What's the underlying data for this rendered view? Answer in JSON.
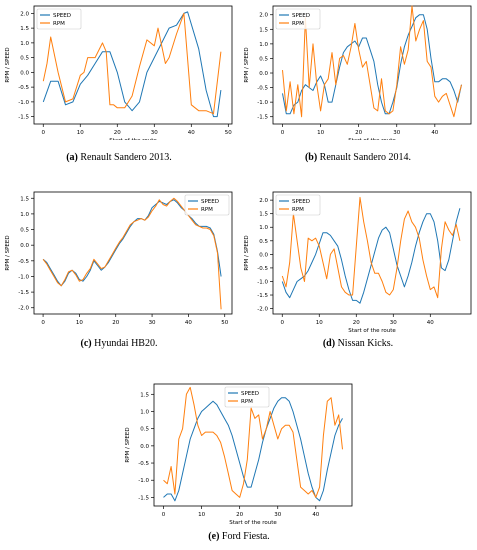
{
  "colors": {
    "speed": "#1f77b4",
    "rpm": "#ff7f0e"
  },
  "chart_data": [
    {
      "type": "line",
      "caption_label": "(a)",
      "caption_text": "Renault Sandero 2013.",
      "xlabel": "Start of the route",
      "ylabel": "RPM / SPEED",
      "xlim": [
        -2.5,
        51
      ],
      "ylim": [
        -1.75,
        2.25
      ],
      "xticks": [
        0,
        10,
        20,
        30,
        40,
        50
      ],
      "yticks": [
        -1.5,
        -1.0,
        -0.5,
        0.0,
        0.5,
        1.0,
        1.5,
        2.0
      ],
      "legend_position": "top-left",
      "series": [
        {
          "name": "SPEED",
          "x": [
            0,
            2,
            4,
            6,
            8,
            10,
            12,
            14,
            16,
            18,
            20,
            22,
            24,
            26,
            28,
            30,
            32,
            34,
            36,
            38,
            39,
            42,
            44,
            46,
            47,
            48
          ],
          "values": [
            -1.0,
            -0.3,
            -0.3,
            -1.1,
            -1.0,
            -0.4,
            -0.1,
            0.3,
            0.7,
            0.7,
            0.0,
            -1.0,
            -1.3,
            -1.0,
            0.0,
            0.5,
            1.0,
            1.5,
            1.6,
            2.0,
            2.05,
            0.8,
            -0.6,
            -1.5,
            -1.5,
            -0.6
          ]
        },
        {
          "name": "RPM",
          "x": [
            0,
            1,
            2,
            4,
            6,
            8,
            10,
            11,
            12,
            14,
            16,
            17,
            18,
            19,
            20,
            22,
            24,
            26,
            28,
            30,
            31,
            33,
            34,
            36,
            38,
            40,
            42,
            44,
            46,
            48
          ],
          "values": [
            -0.3,
            0.3,
            1.2,
            0.0,
            -1.0,
            -0.9,
            -0.1,
            0.0,
            0.5,
            0.5,
            1.0,
            0.7,
            -1.1,
            -1.1,
            -1.2,
            -1.2,
            -0.8,
            0.2,
            1.1,
            0.9,
            1.5,
            0.3,
            0.5,
            1.3,
            2.0,
            -1.1,
            -1.3,
            -1.3,
            -1.4,
            0.7
          ]
        }
      ]
    },
    {
      "type": "line",
      "caption_label": "(b)",
      "caption_text": "Renault Sandero 2014.",
      "xlabel": "Start of the route",
      "ylabel": "RPM / SPEED",
      "xlim": [
        -2.5,
        49.5
      ],
      "ylim": [
        -1.75,
        2.3
      ],
      "xticks": [
        0,
        10,
        20,
        30,
        40
      ],
      "yticks": [
        -1.5,
        -1.0,
        -0.5,
        0.0,
        0.5,
        1.0,
        1.5,
        2.0
      ],
      "legend_position": "top-left",
      "series": [
        {
          "name": "SPEED",
          "x": [
            0,
            1,
            2,
            3,
            4,
            5,
            6,
            7,
            8,
            9,
            10,
            11,
            12,
            13,
            14,
            15,
            16,
            17,
            18,
            19,
            20,
            21,
            22,
            23,
            24,
            25,
            26,
            27,
            28,
            29,
            30,
            31,
            32,
            33,
            34,
            35,
            36,
            37,
            38,
            39,
            40,
            41,
            42,
            43,
            44,
            45,
            46,
            47
          ],
          "values": [
            -0.7,
            -1.4,
            -1.4,
            -1.1,
            -1.0,
            -0.6,
            -0.4,
            -0.5,
            -0.6,
            -0.3,
            -0.1,
            -0.4,
            -1.0,
            -1.0,
            -0.4,
            0.2,
            0.7,
            0.9,
            1.0,
            1.1,
            0.9,
            1.2,
            1.2,
            0.8,
            0.4,
            -0.4,
            -1.0,
            -1.4,
            -1.4,
            -1.0,
            -0.5,
            0.3,
            0.9,
            1.3,
            1.6,
            1.9,
            2.0,
            2.0,
            1.5,
            0.5,
            -0.3,
            -0.3,
            -0.2,
            -0.2,
            -0.3,
            -0.6,
            -1.0,
            -0.4
          ]
        },
        {
          "name": "RPM",
          "x": [
            0,
            1,
            2,
            3,
            4,
            5,
            6,
            7,
            8,
            9,
            10,
            11,
            12,
            13,
            14,
            15,
            16,
            17,
            18,
            19,
            20,
            21,
            22,
            23,
            24,
            25,
            26,
            27,
            28,
            29,
            30,
            31,
            32,
            33,
            34,
            35,
            36,
            37,
            38,
            39,
            40,
            41,
            42,
            43,
            44,
            45,
            46,
            47
          ],
          "values": [
            0.1,
            -1.3,
            -0.3,
            -1.4,
            -0.4,
            -1.5,
            1.9,
            -0.5,
            1.0,
            -0.4,
            -1.3,
            -0.4,
            -0.2,
            0.7,
            -0.4,
            0.5,
            0.6,
            0.3,
            0.9,
            1.7,
            0.8,
            0.2,
            0.4,
            -0.4,
            -1.2,
            -1.3,
            -0.2,
            -1.3,
            -1.4,
            -1.3,
            -0.4,
            0.9,
            0.3,
            0.8,
            2.3,
            1.1,
            1.5,
            1.8,
            0.4,
            0.2,
            -0.8,
            -1.0,
            -0.8,
            -0.7,
            -1.1,
            -1.5,
            -0.9,
            -0.4
          ]
        }
      ]
    },
    {
      "type": "line",
      "caption_label": "(c)",
      "caption_text": "Hyundai HB20.",
      "xlabel": "",
      "ylabel": "RPM / SPEED",
      "xlim": [
        -2.5,
        52
      ],
      "ylim": [
        -2.2,
        1.7
      ],
      "xticks": [
        0,
        10,
        20,
        30,
        40,
        50
      ],
      "yticks": [
        -2.0,
        -1.5,
        -1.0,
        -0.5,
        0.0,
        0.5,
        1.0,
        1.5
      ],
      "legend_position": "top-right",
      "series": [
        {
          "name": "SPEED",
          "x": [
            0,
            1,
            2,
            3,
            4,
            5,
            6,
            7,
            8,
            9,
            10,
            11,
            12,
            13,
            14,
            15,
            16,
            17,
            18,
            19,
            20,
            21,
            22,
            23,
            24,
            25,
            26,
            27,
            28,
            29,
            30,
            31,
            32,
            33,
            34,
            35,
            36,
            37,
            38,
            39,
            40,
            41,
            42,
            43,
            44,
            45,
            46,
            47,
            48,
            49
          ],
          "values": [
            -0.45,
            -0.55,
            -0.75,
            -0.95,
            -1.15,
            -1.3,
            -1.15,
            -0.9,
            -0.8,
            -0.9,
            -1.1,
            -1.15,
            -1.0,
            -0.8,
            -0.5,
            -0.65,
            -0.8,
            -0.7,
            -0.55,
            -0.35,
            -0.15,
            0.05,
            0.2,
            0.4,
            0.6,
            0.75,
            0.85,
            0.85,
            0.8,
            0.95,
            1.2,
            1.3,
            1.4,
            1.35,
            1.3,
            1.4,
            1.45,
            1.35,
            1.2,
            1.1,
            0.95,
            0.85,
            0.7,
            0.6,
            0.6,
            0.6,
            0.55,
            0.35,
            -0.2,
            -1.0
          ]
        },
        {
          "name": "RPM",
          "x": [
            0,
            1,
            2,
            3,
            4,
            5,
            6,
            7,
            8,
            9,
            10,
            11,
            12,
            13,
            14,
            15,
            16,
            17,
            18,
            19,
            20,
            21,
            22,
            23,
            24,
            25,
            26,
            27,
            28,
            29,
            30,
            31,
            32,
            33,
            34,
            35,
            36,
            37,
            38,
            39,
            40,
            41,
            42,
            43,
            44,
            45,
            46,
            47,
            48,
            49
          ],
          "values": [
            -0.45,
            -0.6,
            -0.8,
            -1.0,
            -1.2,
            -1.3,
            -1.1,
            -0.85,
            -0.8,
            -0.95,
            -1.15,
            -1.1,
            -0.9,
            -0.75,
            -0.45,
            -0.6,
            -0.75,
            -0.7,
            -0.5,
            -0.3,
            -0.1,
            0.1,
            0.25,
            0.45,
            0.65,
            0.75,
            0.8,
            0.85,
            0.8,
            0.9,
            1.1,
            1.25,
            1.45,
            1.3,
            1.25,
            1.4,
            1.5,
            1.4,
            1.25,
            1.1,
            0.95,
            0.8,
            0.65,
            0.6,
            0.55,
            0.55,
            0.5,
            0.3,
            -0.25,
            -2.05
          ]
        }
      ]
    },
    {
      "type": "line",
      "caption_label": "(d)",
      "caption_text": "Nissan Kicks.",
      "xlabel": "Start of the route",
      "ylabel": "RPM / SPEED",
      "xlim": [
        -2.5,
        51
      ],
      "ylim": [
        -2.2,
        2.3
      ],
      "xticks": [
        0,
        10,
        20,
        30,
        40
      ],
      "yticks": [
        -2.0,
        -1.5,
        -1.0,
        -0.5,
        0.0,
        0.5,
        1.0,
        1.5,
        2.0
      ],
      "legend_position": "top-left",
      "series": [
        {
          "name": "SPEED",
          "x": [
            0,
            1,
            2,
            3,
            4,
            5,
            6,
            7,
            8,
            9,
            10,
            11,
            12,
            13,
            14,
            15,
            16,
            17,
            18,
            19,
            20,
            21,
            22,
            23,
            24,
            25,
            26,
            27,
            28,
            29,
            30,
            31,
            32,
            33,
            34,
            35,
            36,
            37,
            38,
            39,
            40,
            41,
            42,
            43,
            44,
            45,
            46,
            47,
            48
          ],
          "values": [
            -1.0,
            -1.4,
            -1.6,
            -1.3,
            -1.0,
            -0.9,
            -0.8,
            -0.6,
            -0.3,
            0.0,
            0.4,
            0.8,
            0.8,
            0.7,
            0.5,
            0.3,
            -0.2,
            -0.8,
            -1.3,
            -1.7,
            -1.7,
            -1.8,
            -1.4,
            -0.9,
            -0.4,
            0.1,
            0.6,
            0.9,
            1.0,
            0.8,
            0.2,
            -0.4,
            -0.8,
            -1.2,
            -0.8,
            -0.3,
            0.3,
            0.8,
            1.2,
            1.5,
            1.5,
            1.2,
            0.5,
            -0.5,
            -0.6,
            -0.2,
            0.5,
            1.2,
            1.7
          ]
        },
        {
          "name": "RPM",
          "x": [
            0,
            1,
            2,
            3,
            4,
            5,
            6,
            7,
            8,
            9,
            10,
            11,
            12,
            13,
            14,
            15,
            16,
            17,
            18,
            19,
            20,
            21,
            22,
            23,
            24,
            25,
            26,
            27,
            28,
            29,
            30,
            31,
            32,
            33,
            34,
            35,
            36,
            37,
            38,
            39,
            40,
            41,
            42,
            43,
            44,
            45,
            46,
            47,
            48
          ],
          "values": [
            -0.8,
            -1.2,
            -0.3,
            1.5,
            0.5,
            -0.5,
            -1.0,
            0.6,
            0.5,
            0.6,
            0.3,
            -0.3,
            -0.9,
            0.0,
            0.2,
            -0.5,
            -1.2,
            -1.4,
            -1.5,
            -1.5,
            0.3,
            2.1,
            1.2,
            0.5,
            -0.3,
            -0.7,
            -0.7,
            -1.0,
            -1.4,
            -1.5,
            -1.3,
            -0.5,
            0.5,
            1.3,
            1.6,
            1.2,
            1.0,
            0.6,
            -0.2,
            -0.8,
            -1.3,
            -1.2,
            -1.6,
            0.2,
            1.2,
            0.9,
            0.7,
            1.1,
            0.5
          ]
        }
      ]
    },
    {
      "type": "line",
      "caption_label": "(e)",
      "caption_text": "Ford Fiesta.",
      "xlabel": "Start of the route",
      "ylabel": "RPM / SPEED",
      "xlim": [
        -2.5,
        49.5
      ],
      "ylim": [
        -1.75,
        1.8
      ],
      "xticks": [
        0,
        10,
        20,
        30,
        40
      ],
      "yticks": [
        -1.5,
        -1.0,
        -0.5,
        0.0,
        0.5,
        1.0,
        1.5
      ],
      "legend_position": "top-center",
      "series": [
        {
          "name": "SPEED",
          "x": [
            0,
            1,
            2,
            3,
            4,
            5,
            6,
            7,
            8,
            9,
            10,
            11,
            12,
            13,
            14,
            15,
            16,
            17,
            18,
            19,
            20,
            21,
            22,
            23,
            24,
            25,
            26,
            27,
            28,
            29,
            30,
            31,
            32,
            33,
            34,
            35,
            36,
            37,
            38,
            39,
            40,
            41,
            42,
            43,
            44,
            45,
            46,
            47
          ],
          "values": [
            -1.5,
            -1.4,
            -1.4,
            -1.6,
            -1.3,
            -0.8,
            -0.3,
            0.2,
            0.5,
            0.8,
            1.0,
            1.1,
            1.2,
            1.3,
            1.2,
            1.0,
            0.8,
            0.6,
            0.3,
            -0.1,
            -0.5,
            -0.9,
            -1.2,
            -1.2,
            -0.8,
            -0.4,
            0.1,
            0.5,
            0.8,
            1.1,
            1.3,
            1.4,
            1.4,
            1.3,
            1.0,
            0.6,
            0.2,
            -0.3,
            -0.8,
            -1.2,
            -1.5,
            -1.6,
            -1.3,
            -0.7,
            -0.2,
            0.3,
            0.6,
            0.8
          ]
        },
        {
          "name": "RPM",
          "x": [
            0,
            1,
            2,
            3,
            4,
            5,
            6,
            7,
            8,
            9,
            10,
            11,
            12,
            13,
            14,
            15,
            16,
            17,
            18,
            19,
            20,
            21,
            22,
            23,
            24,
            25,
            26,
            27,
            28,
            29,
            30,
            31,
            32,
            33,
            34,
            35,
            36,
            37,
            38,
            39,
            40,
            41,
            42,
            43,
            44,
            45,
            46,
            47
          ],
          "values": [
            -1.0,
            -1.1,
            -0.6,
            -1.4,
            0.2,
            0.5,
            1.5,
            1.7,
            1.2,
            0.6,
            0.3,
            0.4,
            0.4,
            0.4,
            0.3,
            0.1,
            -0.3,
            -0.8,
            -1.3,
            -1.4,
            -1.5,
            -1.1,
            -0.4,
            1.1,
            0.8,
            0.9,
            0.2,
            0.5,
            1.0,
            0.6,
            0.2,
            0.5,
            0.6,
            0.6,
            0.4,
            -0.4,
            -1.2,
            -1.3,
            -1.4,
            -1.3,
            -1.5,
            -1.2,
            0.3,
            1.3,
            1.4,
            0.6,
            0.9,
            -0.1
          ]
        }
      ]
    }
  ]
}
